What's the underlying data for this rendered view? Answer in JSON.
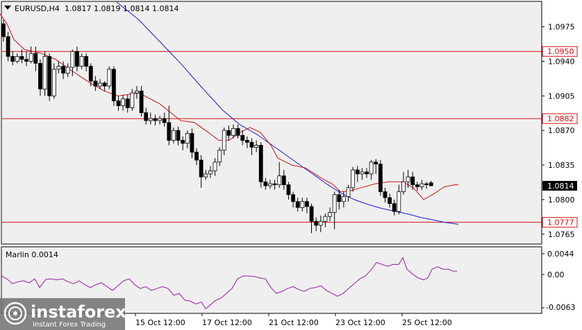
{
  "header": {
    "symbol": "EURUSD,H4",
    "ohlc": "1.0817 1.0819 1.0814 1.0814"
  },
  "indicator": {
    "label": "Marlin 0.0014",
    "ticks": [
      "0.0044",
      "0.00",
      "-0.0063"
    ]
  },
  "watermark": {
    "brand": "instaforex",
    "tagline": "Instant Forex Trading"
  },
  "colors": {
    "background": "#ffffff",
    "plot_bg": "#efefef",
    "bull_body": "#ffffff",
    "bear_body": "#000000",
    "candle_wick": "#000000",
    "ma_fast": "#d01010",
    "ma_slow": "#1a1ad6",
    "level_line": "#d01010",
    "oscillator": "#9a1aa8",
    "price_tag_bg": "#000000",
    "level_tag_bg": "#ffffff"
  },
  "chart_data": {
    "type": "candlestick",
    "y_range": [
      1.0755,
      1.1
    ],
    "y_ticks": [
      "1.0975",
      "1.0940",
      "1.0905",
      "1.0870",
      "1.0835",
      "1.0800",
      "1.0765"
    ],
    "x_labels": [
      "15 Oct 12:00",
      "17 Oct 12:00",
      "21 Oct 12:00",
      "23 Oct 12:00",
      "25 Oct 12:00"
    ],
    "levels": [
      {
        "value": 1.095,
        "label": "1.0950"
      },
      {
        "value": 1.0882,
        "label": "1.0882"
      },
      {
        "value": 1.0777,
        "label": "1.0777"
      }
    ],
    "current_price": {
      "value": 1.0814,
      "label": "1.0814"
    },
    "candles": [
      [
        1.0978,
        1.0965,
        1.0982,
        1.096
      ],
      [
        1.0965,
        1.0945,
        1.097,
        1.094
      ],
      [
        1.0945,
        1.094,
        1.095,
        1.0936
      ],
      [
        1.094,
        1.0945,
        1.0948,
        1.0938
      ],
      [
        1.0945,
        1.0942,
        1.0952,
        1.0938
      ],
      [
        1.0942,
        1.094,
        1.095,
        1.0935
      ],
      [
        1.094,
        1.0948,
        1.0955,
        1.0938
      ],
      [
        1.0948,
        1.0938,
        1.0955,
        1.093
      ],
      [
        1.0938,
        1.0912,
        1.0942,
        1.0905
      ],
      [
        1.0912,
        1.0945,
        1.095,
        1.0905
      ],
      [
        1.0945,
        1.0905,
        1.0948,
        1.09
      ],
      [
        1.0905,
        1.0932,
        1.0938,
        1.0902
      ],
      [
        1.0932,
        1.0935,
        1.094,
        1.0928
      ],
      [
        1.0935,
        1.0928,
        1.094,
        1.0922
      ],
      [
        1.0928,
        1.0934,
        1.0938,
        1.0924
      ],
      [
        1.0934,
        1.095,
        1.0952,
        1.0925
      ],
      [
        1.095,
        1.0935,
        1.0955,
        1.093
      ],
      [
        1.0935,
        1.0945,
        1.0948,
        1.0932
      ],
      [
        1.0945,
        1.0935,
        1.0948,
        1.093
      ],
      [
        1.0935,
        1.092,
        1.0938,
        1.0915
      ],
      [
        1.092,
        1.0915,
        1.0925,
        1.091
      ],
      [
        1.0915,
        1.0918,
        1.0922,
        1.0912
      ],
      [
        1.0918,
        1.0915,
        1.092,
        1.091
      ],
      [
        1.0915,
        1.0932,
        1.0935,
        1.0912
      ],
      [
        1.0932,
        1.09,
        1.0935,
        1.0895
      ],
      [
        1.09,
        1.0895,
        1.0905,
        1.089
      ],
      [
        1.0895,
        1.0902,
        1.0906,
        1.089
      ],
      [
        1.0902,
        1.0893,
        1.0906,
        1.0888
      ],
      [
        1.0893,
        1.0908,
        1.0912,
        1.089
      ],
      [
        1.0908,
        1.091,
        1.0915,
        1.0902
      ],
      [
        1.091,
        1.0888,
        1.0915,
        1.0884
      ],
      [
        1.0888,
        1.088,
        1.0893,
        1.0876
      ],
      [
        1.088,
        1.0882,
        1.0888,
        1.0876
      ],
      [
        1.0882,
        1.088,
        1.0886,
        1.0875
      ],
      [
        1.088,
        1.0882,
        1.0885,
        1.0876
      ],
      [
        1.0882,
        1.0878,
        1.0888,
        1.0874
      ],
      [
        1.0878,
        1.086,
        1.0895,
        1.0855
      ],
      [
        1.086,
        1.087,
        1.0873,
        1.0857
      ],
      [
        1.087,
        1.086,
        1.0874,
        1.0855
      ],
      [
        1.086,
        1.0857,
        1.0864,
        1.085
      ],
      [
        1.0857,
        1.0867,
        1.087,
        1.0852
      ],
      [
        1.0867,
        1.0848,
        1.0872,
        1.0842
      ],
      [
        1.0848,
        1.084,
        1.0852,
        1.0835
      ],
      [
        1.084,
        1.0823,
        1.0845,
        1.0812
      ],
      [
        1.0823,
        1.0826,
        1.083,
        1.082
      ],
      [
        1.0826,
        1.0829,
        1.0834,
        1.0822
      ],
      [
        1.0829,
        1.0838,
        1.0842,
        1.0824
      ],
      [
        1.0838,
        1.085,
        1.0853,
        1.0834
      ],
      [
        1.085,
        1.087,
        1.0873,
        1.0845
      ],
      [
        1.087,
        1.0865,
        1.0875,
        1.086
      ],
      [
        1.0865,
        1.0872,
        1.0876,
        1.0862
      ],
      [
        1.0872,
        1.0865,
        1.0876,
        1.0862
      ],
      [
        1.0865,
        1.086,
        1.087,
        1.0855
      ],
      [
        1.086,
        1.0858,
        1.0864,
        1.0852
      ],
      [
        1.0858,
        1.0853,
        1.0862,
        1.0845
      ],
      [
        1.0853,
        1.0855,
        1.086,
        1.0848
      ],
      [
        1.0855,
        1.0818,
        1.0858,
        1.0812
      ],
      [
        1.0818,
        1.0814,
        1.0822,
        1.081
      ],
      [
        1.0814,
        1.0816,
        1.082,
        1.0811
      ],
      [
        1.0816,
        1.0815,
        1.082,
        1.081
      ],
      [
        1.0815,
        1.0824,
        1.0838,
        1.0812
      ],
      [
        1.0824,
        1.0815,
        1.083,
        1.081
      ],
      [
        1.0815,
        1.0805,
        1.0818,
        1.08
      ],
      [
        1.0805,
        1.0798,
        1.0808,
        1.0792
      ],
      [
        1.0798,
        1.0792,
        1.0802,
        1.0788
      ],
      [
        1.0792,
        1.0798,
        1.0802,
        1.0788
      ],
      [
        1.0798,
        1.0793,
        1.0802,
        1.0786
      ],
      [
        1.0793,
        1.0778,
        1.0796,
        1.0766
      ],
      [
        1.0778,
        1.0774,
        1.0782,
        1.0768
      ],
      [
        1.0774,
        1.0778,
        1.0784,
        1.0767
      ],
      [
        1.0778,
        1.0783,
        1.0786,
        1.0772
      ],
      [
        1.0783,
        1.0787,
        1.0792,
        1.0778
      ],
      [
        1.0787,
        1.0805,
        1.0808,
        1.077
      ],
      [
        1.0805,
        1.0798,
        1.081,
        1.079
      ],
      [
        1.0798,
        1.0803,
        1.0808,
        1.0792
      ],
      [
        1.0803,
        1.0812,
        1.0815,
        1.0798
      ],
      [
        1.0812,
        1.083,
        1.0833,
        1.0808
      ],
      [
        1.083,
        1.0826,
        1.0834,
        1.0818
      ],
      [
        1.0826,
        1.0828,
        1.0832,
        1.082
      ],
      [
        1.0828,
        1.0826,
        1.0832,
        1.0822
      ],
      [
        1.0826,
        1.0838,
        1.084,
        1.082
      ],
      [
        1.0838,
        1.0836,
        1.0841,
        1.0826
      ],
      [
        1.0836,
        1.0808,
        1.084,
        1.0804
      ],
      [
        1.0808,
        1.0802,
        1.0812,
        1.0797
      ],
      [
        1.0802,
        1.0796,
        1.0806,
        1.0792
      ],
      [
        1.0796,
        1.0788,
        1.08,
        1.0784
      ],
      [
        1.0788,
        1.0808,
        1.0815,
        1.0785
      ],
      [
        1.0808,
        1.0818,
        1.0828,
        1.0805
      ],
      [
        1.0818,
        1.0823,
        1.083,
        1.0812
      ],
      [
        1.0823,
        1.0815,
        1.0828,
        1.081
      ],
      [
        1.0815,
        1.0813,
        1.0818,
        1.0809
      ],
      [
        1.0813,
        1.0816,
        1.082,
        1.081
      ],
      [
        1.0816,
        1.0815,
        1.0818,
        1.0811
      ],
      [
        1.0817,
        1.0814,
        1.0819,
        1.0814
      ]
    ],
    "ma_fast": [
      [
        0,
        1.0988
      ],
      [
        10,
        1.0978
      ],
      [
        20,
        1.0962
      ],
      [
        35,
        1.0952
      ],
      [
        60,
        1.0948
      ],
      [
        80,
        1.0942
      ],
      [
        100,
        1.0932
      ],
      [
        130,
        1.0918
      ],
      [
        150,
        1.091
      ],
      [
        170,
        1.0905
      ],
      [
        200,
        1.0908
      ],
      [
        230,
        1.0897
      ],
      [
        260,
        1.088
      ],
      [
        280,
        1.0878
      ],
      [
        300,
        1.0868
      ],
      [
        315,
        1.086
      ],
      [
        330,
        1.086
      ],
      [
        345,
        1.0868
      ],
      [
        360,
        1.0873
      ],
      [
        375,
        1.0868
      ],
      [
        390,
        1.0855
      ],
      [
        400,
        1.0842
      ],
      [
        420,
        1.0835
      ],
      [
        440,
        1.0832
      ],
      [
        460,
        1.0823
      ],
      [
        480,
        1.0815
      ],
      [
        490,
        1.0808
      ],
      [
        505,
        1.0809
      ],
      [
        520,
        1.0812
      ],
      [
        540,
        1.0816
      ],
      [
        560,
        1.0818
      ],
      [
        580,
        1.0818
      ],
      [
        595,
        1.0812
      ],
      [
        610,
        1.08
      ],
      [
        625,
        1.0806
      ],
      [
        640,
        1.0813
      ],
      [
        655,
        1.0815
      ],
      [
        660,
        1.0815
      ]
    ],
    "ma_slow": [
      [
        168,
        1.1
      ],
      [
        200,
        1.0982
      ],
      [
        230,
        1.096
      ],
      [
        260,
        1.0938
      ],
      [
        290,
        1.0914
      ],
      [
        320,
        1.0891
      ],
      [
        345,
        1.0876
      ],
      [
        370,
        1.0866
      ],
      [
        390,
        1.0856
      ],
      [
        410,
        1.0846
      ],
      [
        430,
        1.0836
      ],
      [
        450,
        1.0826
      ],
      [
        470,
        1.0816
      ],
      [
        490,
        1.0807
      ],
      [
        510,
        1.08
      ],
      [
        530,
        1.0795
      ],
      [
        550,
        1.0791
      ],
      [
        570,
        1.0788
      ],
      [
        590,
        1.0785
      ],
      [
        605,
        1.0782
      ],
      [
        620,
        1.078
      ],
      [
        640,
        1.0777
      ],
      [
        660,
        1.0775
      ]
    ],
    "oscillator": {
      "y_range": [
        -0.007,
        0.0065
      ],
      "points": [
        [
          2,
          0.0006
        ],
        [
          10,
          0.0
        ],
        [
          18,
          -0.001
        ],
        [
          26,
          -0.0006
        ],
        [
          34,
          -0.0004
        ],
        [
          42,
          -0.0008
        ],
        [
          50,
          0.0
        ],
        [
          57,
          -0.0018
        ],
        [
          66,
          -0.0001
        ],
        [
          74,
          0.0
        ],
        [
          82,
          -0.0002
        ],
        [
          90,
          0.0
        ],
        [
          98,
          -0.0006
        ],
        [
          106,
          -0.001
        ],
        [
          114,
          -0.0004
        ],
        [
          122,
          -0.0012
        ],
        [
          130,
          -0.0018
        ],
        [
          138,
          -0.0012
        ],
        [
          146,
          -0.0008
        ],
        [
          154,
          -0.0016
        ],
        [
          162,
          -0.0024
        ],
        [
          170,
          -0.0014
        ],
        [
          178,
          -0.0004
        ],
        [
          186,
          0.0
        ],
        [
          194,
          -0.0012
        ],
        [
          202,
          -0.002
        ],
        [
          210,
          -0.0016
        ],
        [
          218,
          -0.0024
        ],
        [
          226,
          -0.002
        ],
        [
          234,
          -0.0016
        ],
        [
          242,
          -0.002
        ],
        [
          250,
          -0.0034
        ],
        [
          258,
          -0.003
        ],
        [
          266,
          -0.0044
        ],
        [
          274,
          -0.0046
        ],
        [
          282,
          -0.0052
        ],
        [
          290,
          -0.0048
        ],
        [
          296,
          -0.0062
        ],
        [
          302,
          -0.0055
        ],
        [
          310,
          -0.0045
        ],
        [
          318,
          -0.004
        ],
        [
          326,
          -0.003
        ],
        [
          334,
          -0.002
        ],
        [
          342,
          0.0
        ],
        [
          350,
          0.0006
        ],
        [
          358,
          0.0006
        ],
        [
          366,
          0.0005
        ],
        [
          374,
          0.0002
        ],
        [
          382,
          0.0
        ],
        [
          390,
          -0.0018
        ],
        [
          398,
          -0.003
        ],
        [
          406,
          -0.0026
        ],
        [
          414,
          -0.002
        ],
        [
          422,
          -0.0016
        ],
        [
          430,
          -0.0022
        ],
        [
          438,
          -0.0026
        ],
        [
          446,
          -0.002
        ],
        [
          454,
          -0.0018
        ],
        [
          462,
          -0.0014
        ],
        [
          470,
          -0.0024
        ],
        [
          478,
          -0.003
        ],
        [
          486,
          -0.0036
        ],
        [
          494,
          -0.003
        ],
        [
          502,
          -0.002
        ],
        [
          510,
          -0.001
        ],
        [
          518,
          0.0
        ],
        [
          526,
          0.0006
        ],
        [
          534,
          0.0018
        ],
        [
          542,
          0.0034
        ],
        [
          550,
          0.003
        ],
        [
          558,
          0.0026
        ],
        [
          566,
          0.003
        ],
        [
          574,
          0.003
        ],
        [
          580,
          0.0044
        ],
        [
          586,
          0.002
        ],
        [
          594,
          0.001
        ],
        [
          602,
          0.0002
        ],
        [
          610,
          -0.0002
        ],
        [
          616,
          0.0002
        ],
        [
          622,
          0.002
        ],
        [
          630,
          0.0025
        ],
        [
          638,
          0.002
        ],
        [
          646,
          0.002
        ],
        [
          652,
          0.0016
        ],
        [
          658,
          0.0016
        ]
      ]
    }
  }
}
